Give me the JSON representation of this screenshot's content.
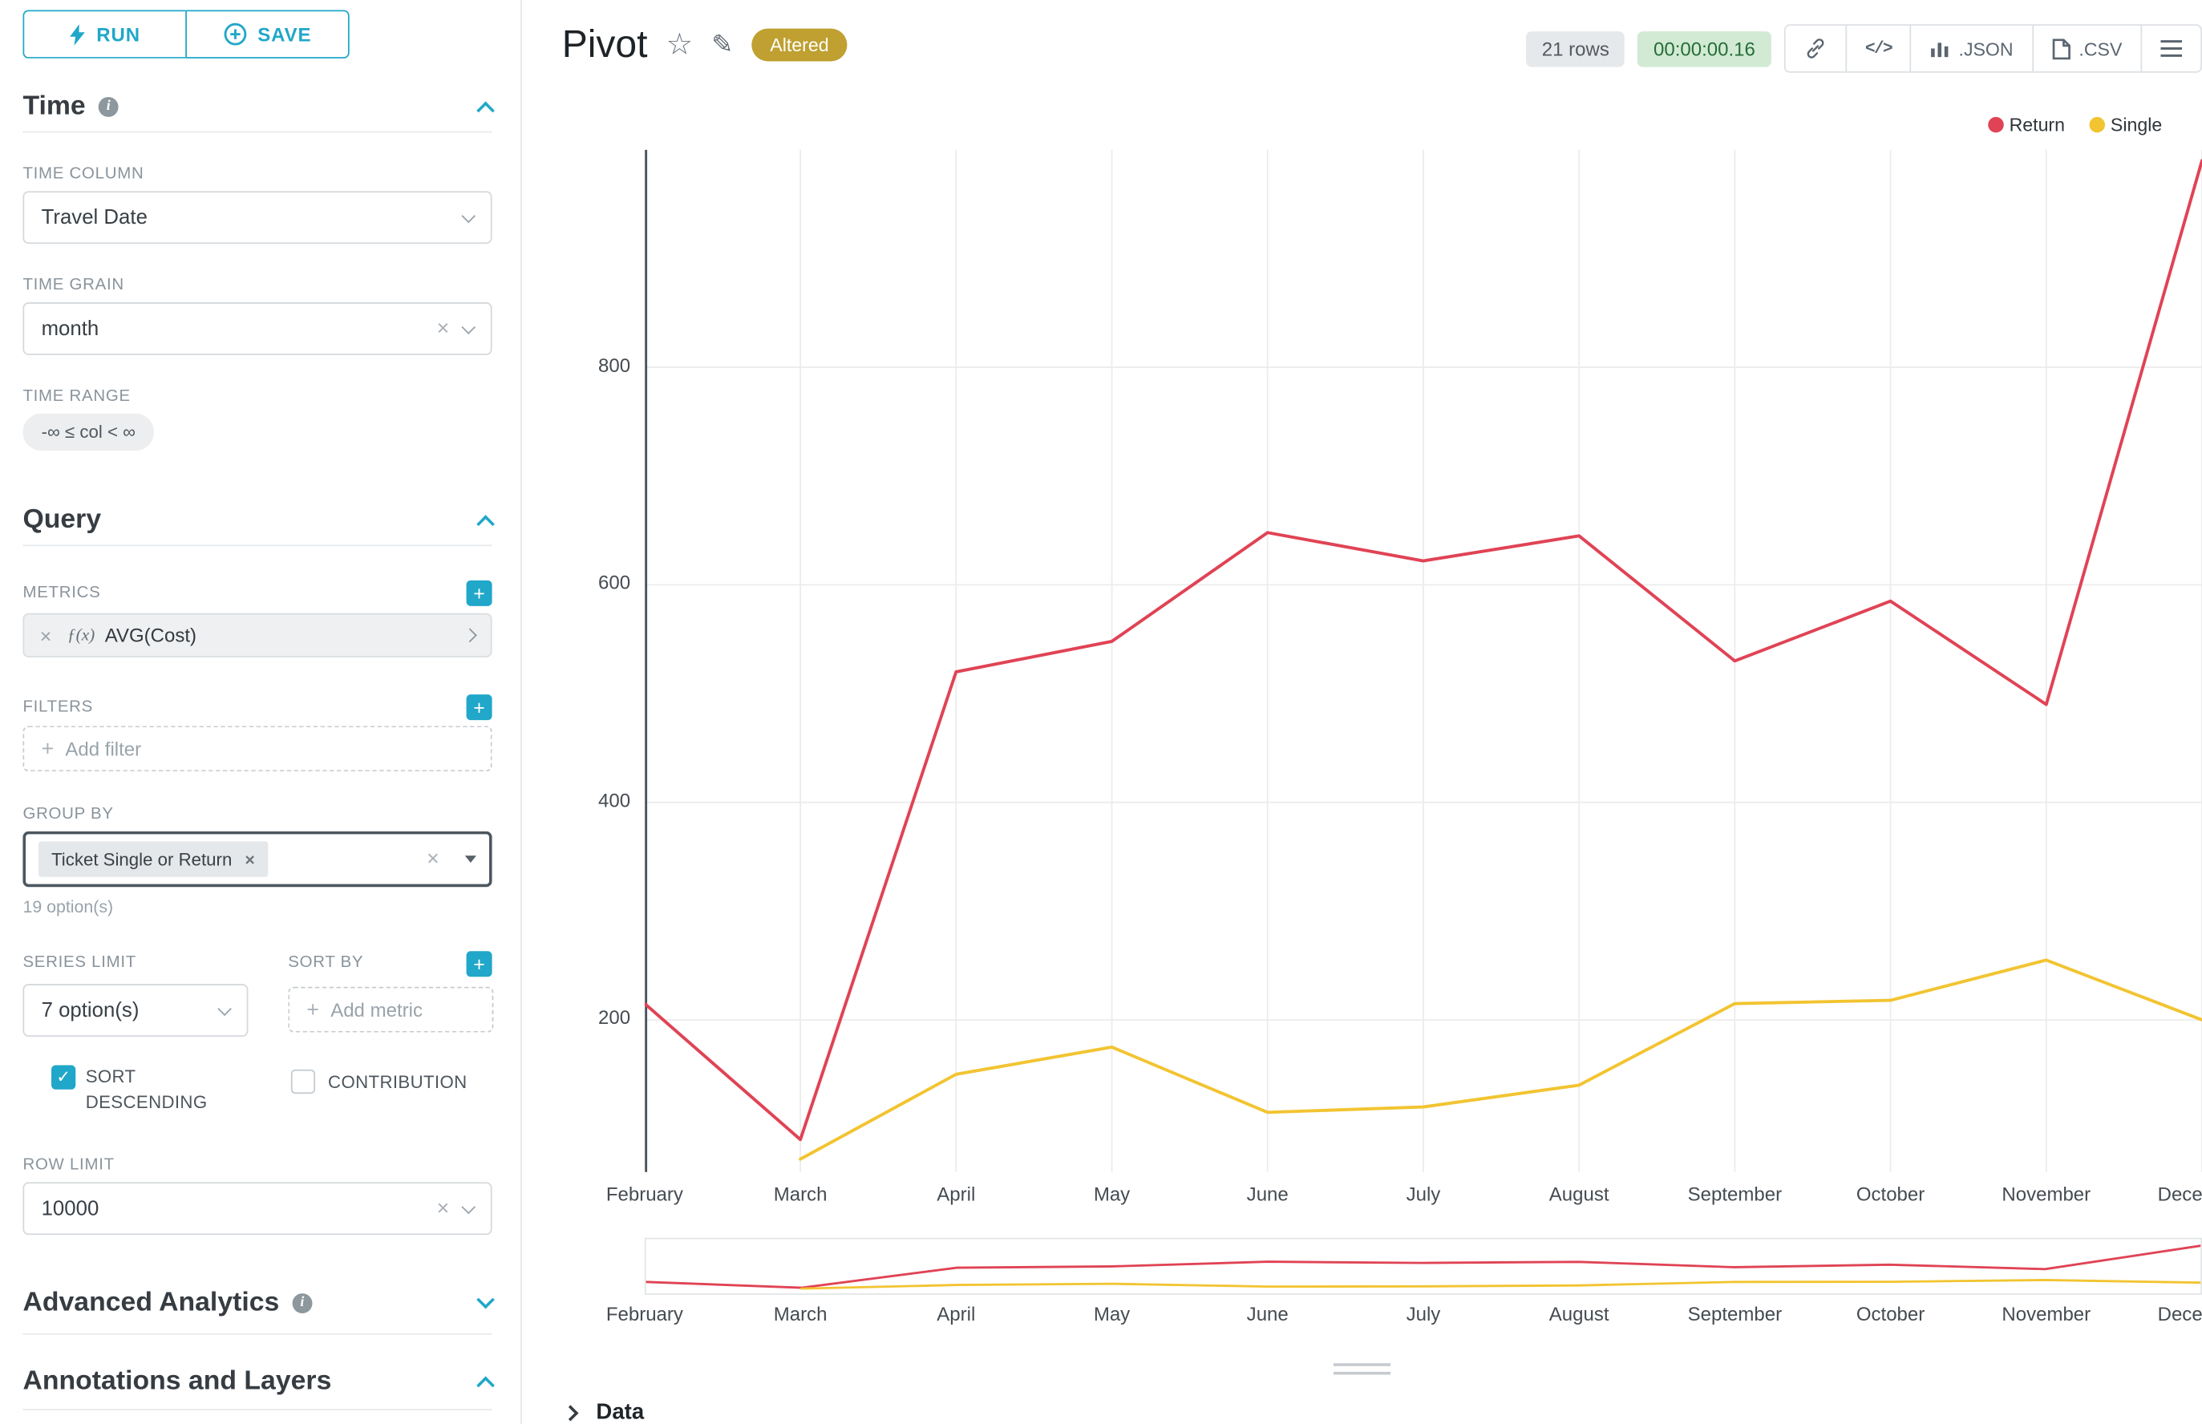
{
  "colors": {
    "accent": "#20a7c9",
    "return_red": "#e04355",
    "single_gold": "#f2c431",
    "altered_badge_bg": "#bfa030",
    "timer_pill_bg": "#d2ead4",
    "timer_pill_text": "#256d38"
  },
  "toolbar": {
    "run": "RUN",
    "save": "SAVE"
  },
  "sidebar": {
    "time_title": "Time",
    "time_column_label": "TIME COLUMN",
    "time_column_value": "Travel Date",
    "time_grain_label": "TIME GRAIN",
    "time_grain_value": "month",
    "time_range_label": "TIME RANGE",
    "time_range_value": "-∞ ≤ col < ∞",
    "query_title": "Query",
    "metrics_label": "METRICS",
    "metric_fx": "ƒ(x)",
    "metric_value": "AVG(Cost)",
    "filters_label": "FILTERS",
    "add_filter": "Add filter",
    "group_by_label": "GROUP BY",
    "group_by_tag": "Ticket Single or Return",
    "group_by_hint": "19 option(s)",
    "series_limit_label": "SERIES LIMIT",
    "series_limit_value": "7 option(s)",
    "sort_by_label": "SORT BY",
    "add_metric": "Add metric",
    "sort_descending_label": "SORT DESCENDING",
    "contribution_label": "CONTRIBUTION",
    "row_limit_label": "ROW LIMIT",
    "row_limit_value": "10000",
    "advanced_title": "Advanced Analytics",
    "annotations_title": "Annotations and Layers"
  },
  "header": {
    "title": "Pivot",
    "altered": "Altered",
    "rows": "21 rows",
    "timer": "00:00:00.16",
    "code": "</>",
    "json": ".JSON",
    "csv": ".CSV"
  },
  "footer": {
    "data": "Data"
  },
  "chart_data": {
    "type": "line",
    "title": "Pivot",
    "x": [
      "February",
      "March",
      "April",
      "May",
      "June",
      "July",
      "August",
      "September",
      "October",
      "November",
      "December"
    ],
    "series": [
      {
        "name": "Return",
        "color": "#e04355",
        "values": [
          215,
          90,
          520,
          548,
          648,
          622,
          645,
          530,
          585,
          490,
          990
        ]
      },
      {
        "name": "Single",
        "color": "#f2c431",
        "values": [
          null,
          72,
          150,
          175,
          115,
          120,
          140,
          215,
          218,
          255,
          200
        ]
      }
    ],
    "yticks": [
      200,
      400,
      600,
      800
    ],
    "ylim": [
      60,
      1000
    ],
    "grid": true,
    "legend_position": "top-right",
    "has_range_selector": true
  }
}
